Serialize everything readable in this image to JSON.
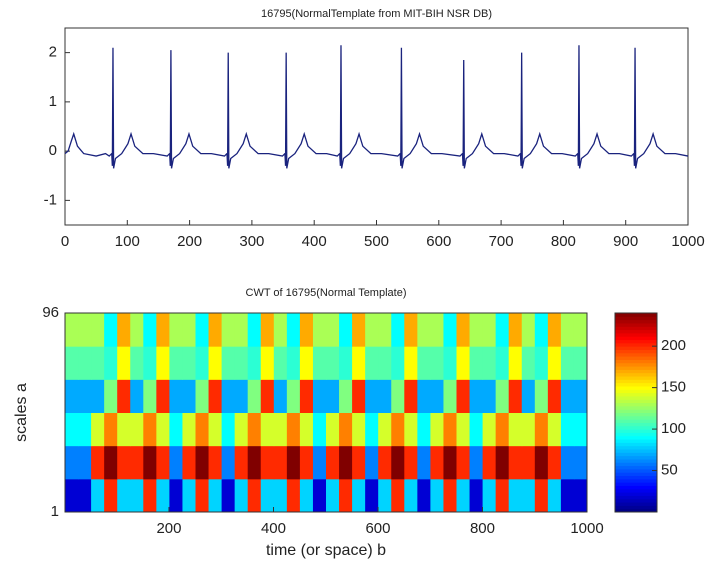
{
  "chart_data": [
    {
      "type": "line",
      "title": "16795(NormalTemplate from MIT-BIH NSR DB)",
      "x": [
        0,
        5,
        10,
        14,
        20,
        30,
        50,
        65,
        71,
        75,
        76,
        77,
        78,
        81,
        91,
        101,
        106,
        112,
        125,
        142,
        164,
        168,
        169,
        170,
        171,
        174,
        184,
        194,
        199,
        205,
        218,
        235,
        256,
        260,
        261,
        262,
        263,
        266,
        276,
        286,
        291,
        297,
        310,
        327,
        349,
        353,
        354,
        355,
        356,
        359,
        369,
        379,
        384,
        390,
        403,
        420,
        437,
        441,
        442,
        443,
        444,
        447,
        457,
        467,
        472,
        478,
        491,
        508,
        534,
        538,
        539,
        540,
        541,
        544,
        554,
        564,
        569,
        575,
        588,
        605,
        634,
        638,
        639,
        640,
        641,
        644,
        654,
        664,
        669,
        675,
        688,
        705,
        727,
        731,
        732,
        733,
        734,
        737,
        747,
        757,
        762,
        768,
        781,
        798,
        819,
        823,
        824,
        825,
        826,
        829,
        839,
        849,
        854,
        860,
        873,
        890,
        909,
        913,
        914,
        915,
        916,
        919,
        929,
        939,
        944,
        950,
        963,
        980,
        1000
      ],
      "series": [
        {
          "color": "#1a237e",
          "values": [
            -0.05,
            0,
            0.2,
            0.35,
            0.1,
            -0.05,
            -0.1,
            -0.05,
            -0.1,
            -0.05,
            -0.3,
            2.1,
            -0.35,
            -0.15,
            -0.05,
            0.15,
            0.35,
            0.1,
            -0.05,
            -0.05,
            -0.1,
            -0.05,
            -0.3,
            2.05,
            -0.35,
            -0.15,
            -0.05,
            0.15,
            0.35,
            0.1,
            -0.05,
            -0.05,
            -0.1,
            -0.05,
            -0.3,
            2.0,
            -0.35,
            -0.15,
            -0.05,
            0.15,
            0.35,
            0.1,
            -0.05,
            -0.05,
            -0.1,
            -0.05,
            -0.3,
            2.0,
            -0.35,
            -0.15,
            -0.05,
            0.15,
            0.35,
            0.1,
            -0.05,
            -0.05,
            -0.1,
            -0.05,
            -0.3,
            2.15,
            -0.35,
            -0.15,
            -0.05,
            0.15,
            0.35,
            0.1,
            -0.05,
            -0.05,
            -0.1,
            -0.05,
            -0.3,
            2.1,
            -0.35,
            -0.15,
            -0.05,
            0.15,
            0.35,
            0.1,
            -0.05,
            -0.05,
            -0.1,
            -0.05,
            -0.3,
            1.85,
            -0.35,
            -0.15,
            -0.05,
            0.15,
            0.35,
            0.1,
            -0.05,
            -0.05,
            -0.1,
            -0.05,
            -0.3,
            2.0,
            -0.35,
            -0.15,
            -0.05,
            0.15,
            0.35,
            0.1,
            -0.05,
            -0.05,
            -0.1,
            -0.05,
            -0.3,
            2.15,
            -0.35,
            -0.15,
            -0.05,
            0.15,
            0.35,
            0.1,
            -0.05,
            -0.05,
            -0.1,
            -0.05,
            -0.3,
            2.1,
            -0.35,
            -0.15,
            -0.05,
            0.15,
            0.35,
            0.1,
            -0.05,
            -0.05,
            -0.1
          ]
        }
      ],
      "xlim": [
        0,
        1000
      ],
      "xticks": [
        0,
        100,
        200,
        300,
        400,
        500,
        600,
        700,
        800,
        900,
        1000
      ],
      "ylim": [
        -1.5,
        2.5
      ],
      "yticks": [
        -1,
        0,
        1,
        2
      ]
    },
    {
      "type": "heatmap",
      "title": "CWT of 16795(Normal Template)",
      "xlabel": "time (or space) b",
      "ylabel": "scales a",
      "xlim": [
        1,
        1000
      ],
      "xticks": [
        200,
        400,
        600,
        800,
        1000
      ],
      "ylim": [
        1,
        96
      ],
      "yticks": [
        1,
        96
      ],
      "colormap": "jet",
      "clim": [
        0,
        240
      ],
      "cticks": [
        50,
        100,
        150,
        200
      ],
      "z": [
        [
          20,
          20,
          80,
          200,
          80,
          80,
          200,
          80,
          20,
          80,
          200,
          80,
          20,
          80,
          200,
          80,
          80,
          200,
          80,
          20,
          80,
          200,
          80,
          20,
          80,
          200,
          80,
          20,
          80,
          200,
          80,
          20,
          80,
          200,
          80,
          80,
          200,
          80,
          20,
          20
        ],
        [
          60,
          60,
          200,
          240,
          200,
          200,
          240,
          200,
          60,
          200,
          240,
          200,
          60,
          200,
          240,
          200,
          200,
          240,
          200,
          60,
          200,
          240,
          200,
          60,
          200,
          240,
          200,
          60,
          200,
          240,
          200,
          60,
          200,
          240,
          200,
          200,
          240,
          200,
          60,
          60
        ],
        [
          90,
          90,
          140,
          180,
          140,
          140,
          180,
          140,
          90,
          140,
          180,
          140,
          90,
          140,
          180,
          140,
          140,
          180,
          140,
          90,
          140,
          180,
          140,
          90,
          140,
          180,
          140,
          90,
          140,
          180,
          140,
          90,
          140,
          180,
          140,
          140,
          180,
          140,
          90,
          90
        ],
        [
          70,
          70,
          70,
          120,
          200,
          70,
          120,
          200,
          70,
          70,
          120,
          200,
          70,
          70,
          120,
          200,
          70,
          120,
          200,
          70,
          70,
          120,
          200,
          70,
          70,
          120,
          200,
          70,
          70,
          120,
          200,
          70,
          70,
          120,
          200,
          70,
          120,
          200,
          70,
          70
        ],
        [
          110,
          110,
          110,
          100,
          150,
          110,
          100,
          150,
          110,
          110,
          100,
          150,
          110,
          110,
          100,
          150,
          110,
          100,
          150,
          110,
          110,
          100,
          150,
          110,
          110,
          100,
          150,
          110,
          110,
          100,
          150,
          110,
          110,
          100,
          150,
          110,
          100,
          150,
          110,
          110
        ],
        [
          130,
          130,
          130,
          90,
          170,
          130,
          90,
          170,
          130,
          130,
          90,
          170,
          130,
          130,
          90,
          170,
          130,
          90,
          170,
          130,
          130,
          90,
          170,
          130,
          130,
          90,
          170,
          130,
          130,
          90,
          170,
          130,
          130,
          90,
          170,
          130,
          90,
          170,
          130,
          130
        ]
      ]
    }
  ]
}
